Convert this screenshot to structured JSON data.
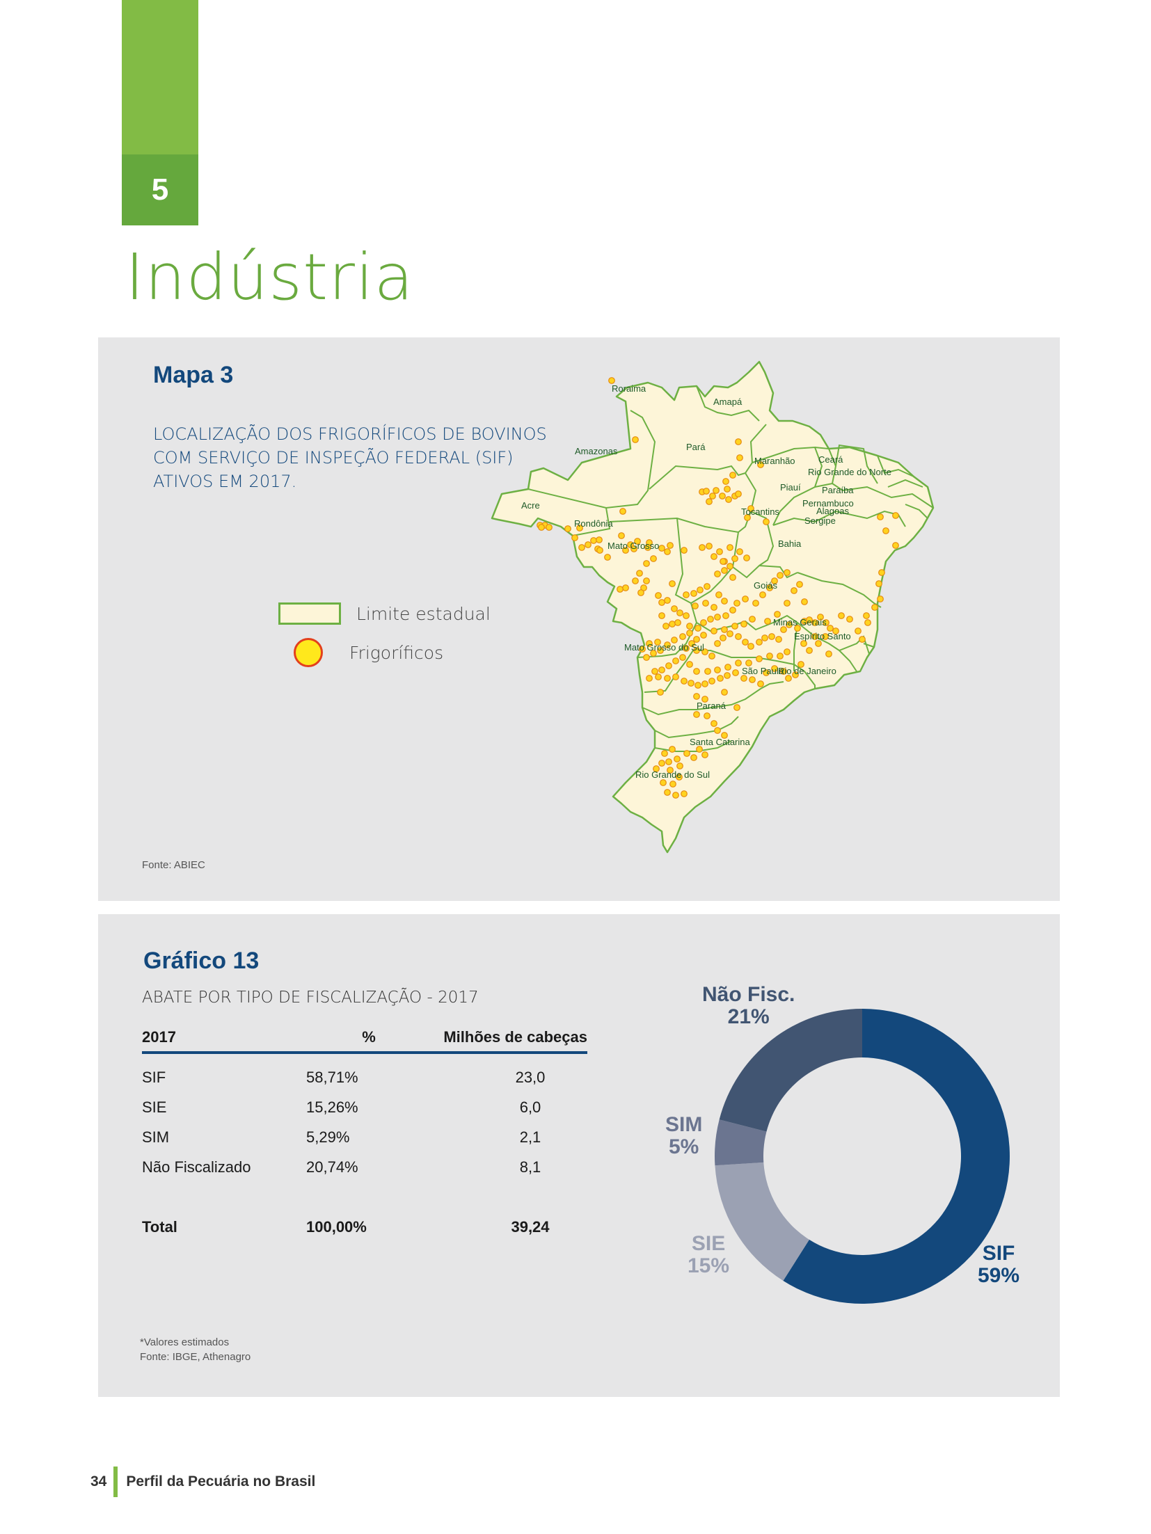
{
  "chapter": {
    "number": "5",
    "title": "Indústria"
  },
  "map": {
    "heading": "Mapa 3",
    "subtitle_lines": [
      "LOCALIZAÇÃO DOS FRIGORÍFICOS DE BOVINOS",
      "COM SERVIÇO DE INSPEÇÃO FEDERAL (SIF)",
      "ATIVOS EM 2017."
    ],
    "legend": {
      "boundary": "Limite estadual",
      "plants": "Frigoríficos"
    },
    "source": "Fonte: ABIEC",
    "states": [
      "Roraima",
      "Amapá",
      "Amazonas",
      "Pará",
      "Maranhão",
      "Ceará",
      "Rio Grande do Norte",
      "Piauí",
      "Paraíba",
      "Pernambuco",
      "Alagoas",
      "Sergipe",
      "Acre",
      "Rondônia",
      "Tocantins",
      "Bahia",
      "Mato Grosso",
      "Goiás",
      "Minas Gerais",
      "Espírito Santo",
      "Mato Grosso do Sul",
      "São Paulo",
      "Rio de Janeiro",
      "Paraná",
      "Santa Catarina",
      "Rio Grande do Sul"
    ],
    "colors": {
      "land": "#fdf5d8",
      "border": "#6db043",
      "plant_fill": "#ffd320",
      "plant_stroke": "#e58a12"
    }
  },
  "chart": {
    "heading": "Gráfico 13",
    "subtitle": "ABATE POR TIPO DE FISCALIZAÇÃO - 2017",
    "table": {
      "headers": [
        "2017",
        "%",
        "Milhões de cabeças"
      ],
      "rows": [
        [
          "SIF",
          "58,71%",
          "23,0"
        ],
        [
          "SIE",
          "15,26%",
          "6,0"
        ],
        [
          "SIM",
          "5,29%",
          "2,1"
        ],
        [
          "Não Fiscalizado",
          "20,74%",
          "8,1"
        ]
      ],
      "total": [
        "Total",
        "100,00%",
        "39,24"
      ]
    },
    "notes": [
      "*Valores estimados",
      "Fonte: IBGE, Athenagro"
    ]
  },
  "chart_data": {
    "type": "pie",
    "variant": "donut",
    "categories": [
      "SIF",
      "SIE",
      "SIM",
      "Não Fisc."
    ],
    "values": [
      59,
      15,
      5,
      21
    ],
    "labels": [
      "59%",
      "15%",
      "5%",
      "21%"
    ],
    "colors": [
      "#13487c",
      "#9ba1b3",
      "#6b7590",
      "#415572"
    ]
  },
  "footer": {
    "page_number": "34",
    "publication": "Perfil da Pecuária no Brasil"
  }
}
